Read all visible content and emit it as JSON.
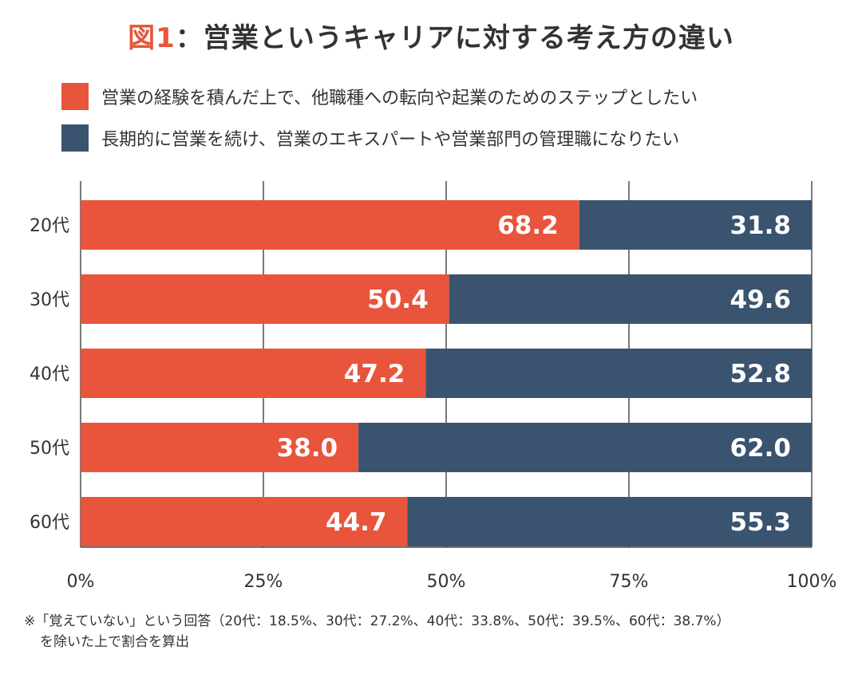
{
  "title": {
    "prefix": "図1",
    "main": "：営業というキャリアに対する考え方の違い"
  },
  "legend": [
    {
      "label": "営業の経験を積んだ上で、他職種への転向や起業のためのステップとしたい",
      "color": "#e8553c"
    },
    {
      "label": "長期的に営業を続け、営業のエキスパートや営業部門の管理職になりたい",
      "color": "#3a536f"
    }
  ],
  "chart_data": {
    "type": "bar",
    "orientation": "horizontal",
    "stacked": true,
    "categories": [
      "20代",
      "30代",
      "40代",
      "50代",
      "60代"
    ],
    "series": [
      {
        "name": "営業の経験を積んだ上で、他職種への転向や起業のためのステップとしたい",
        "values": [
          68.2,
          50.4,
          47.2,
          38.0,
          44.7
        ],
        "labels": [
          "68.2",
          "50.4",
          "47.2",
          "38.0",
          "44.7"
        ],
        "color": "#e8553c"
      },
      {
        "name": "長期的に営業を続け、営業のエキスパートや営業部門の管理職になりたい",
        "values": [
          31.8,
          49.6,
          52.8,
          62.0,
          55.3
        ],
        "labels": [
          "31.8",
          "49.6",
          "52.8",
          "62.0",
          "55.3"
        ],
        "color": "#3a536f"
      }
    ],
    "xlim": [
      0,
      100
    ],
    "xticks": [
      0,
      25,
      50,
      75,
      100
    ],
    "xtick_labels": [
      "0%",
      "25%",
      "50%",
      "75%",
      "100%"
    ],
    "grid": true
  },
  "footnote": {
    "line1": "※「覚えていない」という回答（20代：18.5%、30代：27.2%、40代：33.8%、50代：39.5%、60代：38.7%）",
    "line2": "を除いた上で割合を算出"
  }
}
